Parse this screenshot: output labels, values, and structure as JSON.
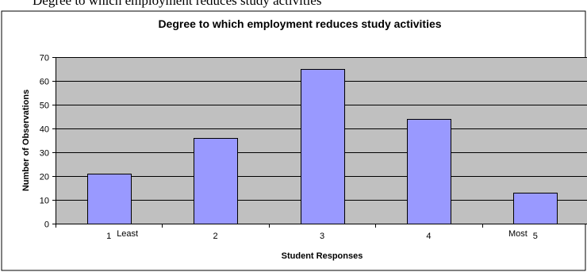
{
  "caption": "Degree to which employment reduces study activities",
  "colors": {
    "plot_background": "#c0c0c0",
    "bar_fill": "#9999ff",
    "bar_stroke": "#000000",
    "gridline": "#000000",
    "chart_border": "#000000"
  },
  "chart_data": {
    "type": "bar",
    "title": "Degree to which employment reduces study activities",
    "xlabel": "Student Responses",
    "ylabel": "Number of Observations",
    "categories": [
      "1",
      "2",
      "3",
      "4",
      "5"
    ],
    "category_annotations": [
      {
        "category": "1",
        "text": "Least",
        "side": "right"
      },
      {
        "category": "5",
        "text": "Most",
        "side": "left"
      }
    ],
    "values": [
      21,
      36,
      65,
      44,
      13
    ],
    "ylim": [
      0,
      70
    ],
    "yticks": [
      0,
      10,
      20,
      30,
      40,
      50,
      60,
      70
    ],
    "grid": true,
    "legend": "none"
  }
}
